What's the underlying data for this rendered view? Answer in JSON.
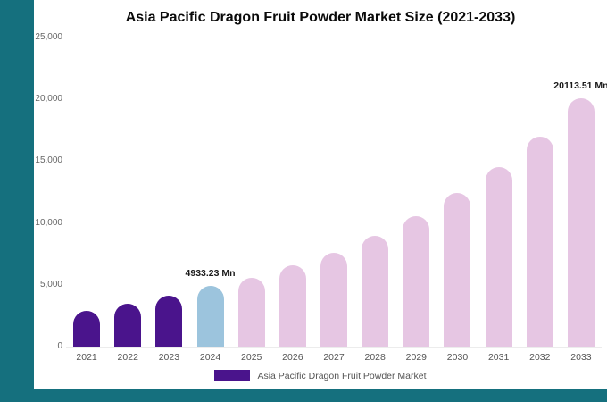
{
  "page": {
    "background": "#15707E",
    "panel_background": "#ffffff"
  },
  "title": "Asia Pacific Dragon Fruit Powder Market Size (2021-2033)",
  "legend": {
    "label": "Asia Pacific Dragon Fruit Powder Market",
    "swatch_color": "#4A148C"
  },
  "chart_data": {
    "type": "bar",
    "title": "Asia Pacific Dragon Fruit Powder Market Size (2021-2033)",
    "xlabel": "",
    "ylabel": "",
    "unit": "Mn",
    "ylim": [
      0,
      25000
    ],
    "yticks": [
      0,
      5000,
      10000,
      15000,
      20000,
      25000
    ],
    "ytick_labels": [
      "0",
      "5,000",
      "10,000",
      "15,000",
      "20,000",
      "25,000"
    ],
    "categories": [
      "2021",
      "2022",
      "2023",
      "2024",
      "2025",
      "2026",
      "2027",
      "2028",
      "2029",
      "2030",
      "2031",
      "2032",
      "2033"
    ],
    "values": [
      2900,
      3450,
      4150,
      4933.23,
      5550,
      6550,
      7600,
      8950,
      10550,
      12400,
      14550,
      17000,
      20113.51
    ],
    "bar_colors": [
      "#4A148C",
      "#4A148C",
      "#4A148C",
      "#9CC4DD",
      "#E6C6E3",
      "#E6C6E3",
      "#E6C6E3",
      "#E6C6E3",
      "#E6C6E3",
      "#E6C6E3",
      "#E6C6E3",
      "#E6C6E3",
      "#E6C6E3"
    ],
    "annotations": [
      {
        "index": 3,
        "label": "4933.23 Mn"
      },
      {
        "index": 12,
        "label": "20113.51 Mn"
      }
    ],
    "grid": false,
    "legend_position": "bottom",
    "legend_entries": [
      "Asia Pacific Dragon Fruit Powder Market"
    ]
  }
}
